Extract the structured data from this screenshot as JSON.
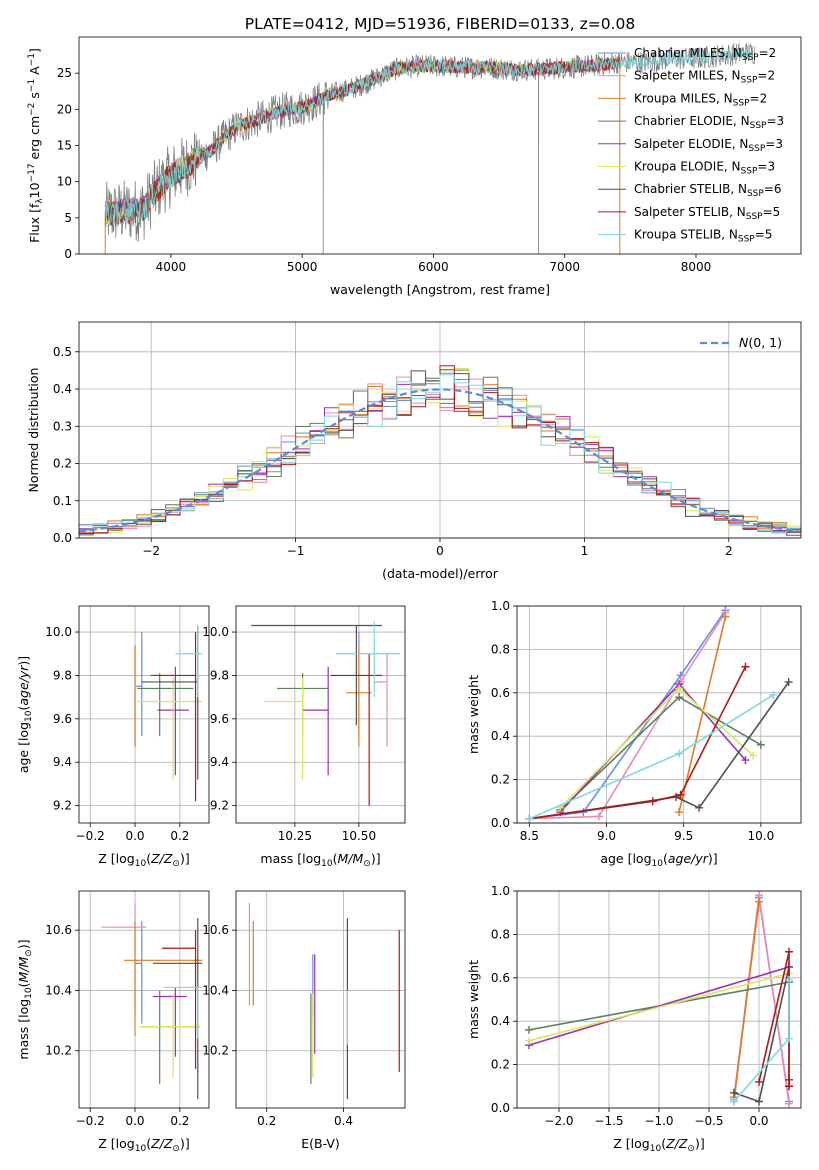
{
  "figure_title": "PLATE=0412, MJD=51936, FIBERID=0133, z=0.08",
  "models": [
    {
      "name": "Chabrier MILES, N_SSP=2",
      "base": "Chabrier MILES, N",
      "sub": "SSP",
      "suffix": "=2",
      "color": "#6a8fe0"
    },
    {
      "name": "Salpeter MILES, N_SSP=2",
      "base": "Salpeter MILES, N",
      "sub": "SSP",
      "suffix": "=2",
      "color": "#e88ab8"
    },
    {
      "name": "Kroupa MILES, N_SSP=2",
      "base": "Kroupa MILES, N",
      "sub": "SSP",
      "suffix": "=2",
      "color": "#e07b22"
    },
    {
      "name": "Chabrier ELODIE, N_SSP=3",
      "base": "Chabrier ELODIE, N",
      "sub": "SSP",
      "suffix": "=3",
      "color": "#5c7f5c"
    },
    {
      "name": "Salpeter ELODIE, N_SSP=3",
      "base": "Salpeter ELODIE, N",
      "sub": "SSP",
      "suffix": "=3",
      "color": "#9b30b0"
    },
    {
      "name": "Kroupa ELODIE, N_SSP=3",
      "base": "Kroupa ELODIE, N",
      "sub": "SSP",
      "suffix": "=3",
      "color": "#d5e860"
    },
    {
      "name": "Chabrier STELIB, N_SSP=6",
      "base": "Chabrier STELIB, N",
      "sub": "SSP",
      "suffix": "=6",
      "color": "#505050"
    },
    {
      "name": "Salpeter STELIB, N_SSP=5",
      "base": "Salpeter STELIB, N",
      "sub": "SSP",
      "suffix": "=5",
      "color": "#b01818"
    },
    {
      "name": "Kroupa STELIB, N_SSP=5",
      "base": "Kroupa STELIB, N",
      "sub": "SSP",
      "suffix": "=5",
      "color": "#7ed8e0"
    }
  ],
  "chart_data": [
    {
      "id": "spectrum",
      "type": "line",
      "title": "PLATE=0412, MJD=51936, FIBERID=0133, z=0.08",
      "xlabel": "wavelength [Angstrom, rest frame]",
      "ylabel": "Flux [f_λ 10^-17 erg cm^-2 s^-1 A^-1]",
      "xlim": [
        3300,
        8800
      ],
      "ylim": [
        0,
        30
      ],
      "xticks": [
        4000,
        5000,
        6000,
        7000,
        8000
      ],
      "yticks": [
        0,
        5,
        10,
        15,
        20,
        25
      ],
      "data_color": "#808080",
      "continuum": [
        [
          3500,
          5.5
        ],
        [
          3600,
          5.8
        ],
        [
          3700,
          6.0
        ],
        [
          3800,
          6.3
        ],
        [
          3850,
          8.0
        ],
        [
          3900,
          9.0
        ],
        [
          3950,
          10.0
        ],
        [
          4000,
          10.8
        ],
        [
          4050,
          11.5
        ],
        [
          4100,
          12.0
        ],
        [
          4200,
          13.2
        ],
        [
          4300,
          14.2
        ],
        [
          4400,
          16.0
        ],
        [
          4500,
          17.5
        ],
        [
          4600,
          18.2
        ],
        [
          4700,
          18.8
        ],
        [
          4800,
          19.5
        ],
        [
          4900,
          20.0
        ],
        [
          5000,
          20.3
        ],
        [
          5100,
          21.0
        ],
        [
          5200,
          22.0
        ],
        [
          5300,
          22.5
        ],
        [
          5400,
          23.0
        ],
        [
          5500,
          23.8
        ],
        [
          5600,
          24.6
        ],
        [
          5700,
          25.5
        ],
        [
          5800,
          25.8
        ],
        [
          5900,
          26.0
        ],
        [
          6000,
          26.0
        ],
        [
          6200,
          25.8
        ],
        [
          6400,
          25.8
        ],
        [
          6600,
          25.5
        ],
        [
          6800,
          25.5
        ],
        [
          7000,
          25.8
        ],
        [
          7200,
          26.0
        ],
        [
          7400,
          26.5
        ],
        [
          7600,
          26.5
        ],
        [
          7800,
          27.0
        ],
        [
          8000,
          27.0
        ],
        [
          8200,
          27.5
        ],
        [
          8400,
          27.8
        ]
      ],
      "data_range": [
        3500,
        8450
      ],
      "model_range": [
        3500,
        7420
      ],
      "data_spikes": [
        [
          5160,
          0
        ],
        [
          6800,
          0
        ]
      ]
    },
    {
      "id": "residuals",
      "type": "histogram",
      "xlabel": "(data-model)/error",
      "ylabel": "Normed distribution",
      "xlim": [
        -2.5,
        2.5
      ],
      "ylim": [
        0,
        0.58
      ],
      "xticks": [
        -2,
        -1,
        0,
        1,
        2
      ],
      "yticks": [
        0,
        0.1,
        0.2,
        0.3,
        0.4,
        0.5
      ],
      "legend": "N(0,1)",
      "legend_color": "#5b8bd6",
      "bin_width": 0.1,
      "bin_start": -2.5
    },
    {
      "id": "age_vs_Z",
      "type": "errorbar",
      "xlabel": "Z [log10(Z/Z☉)]",
      "ylabel": "age [log10(age/yr)]",
      "xlim": [
        -0.25,
        0.33
      ],
      "ylim": [
        9.12,
        10.12
      ],
      "xticks": [
        -0.2,
        0.0,
        0.2
      ],
      "yticks": [
        9.2,
        9.4,
        9.6,
        9.8,
        10.0
      ],
      "points": [
        {
          "x": 0.03,
          "xerr": [
            0.03,
            0.0
          ],
          "y": 9.75,
          "yerr": [
            0.23,
            0.25
          ]
        },
        {
          "x": 0.0,
          "xerr": [
            0.0,
            0.0
          ],
          "y": 9.72,
          "yerr": [
            0.25,
            0.22
          ]
        },
        {
          "x": 0.0,
          "xerr": [
            0.0,
            0.0
          ],
          "y": 9.72,
          "yerr": [
            0.25,
            0.22
          ]
        },
        {
          "x": 0.11,
          "xerr": [
            0.1,
            0.15
          ],
          "y": 9.74,
          "yerr": [
            0.22,
            0.07
          ]
        },
        {
          "x": 0.18,
          "xerr": [
            0.08,
            0.06
          ],
          "y": 9.64,
          "yerr": [
            0.3,
            0.2
          ]
        },
        {
          "x": 0.17,
          "xerr": [
            0.16,
            0.13
          ],
          "y": 9.68,
          "yerr": [
            0.36,
            0.11
          ]
        },
        {
          "x": 0.28,
          "xerr": [
            0.25,
            0.0
          ],
          "y": 9.77,
          "yerr": [
            0.45,
            0.26
          ]
        },
        {
          "x": 0.27,
          "xerr": [
            0.2,
            0.0
          ],
          "y": 9.8,
          "yerr": [
            0.58,
            0.2
          ]
        },
        {
          "x": 0.28,
          "xerr": [
            0.1,
            0.02
          ],
          "y": 9.9,
          "yerr": [
            0.2,
            0.13
          ]
        }
      ]
    },
    {
      "id": "age_vs_mass",
      "type": "errorbar",
      "xlabel": "mass [log10(M/M☉)]",
      "ylabel": "",
      "xlim": [
        10.02,
        10.68
      ],
      "ylim": [
        9.12,
        10.12
      ],
      "xticks": [
        10.25,
        10.5
      ],
      "yticks": [
        9.2,
        9.4,
        9.6,
        9.8,
        10.0
      ],
      "points": [
        {
          "x": 10.5,
          "xerr": [
            0.0,
            0.0
          ],
          "y": 9.75,
          "yerr": [
            0.23,
            0.25
          ]
        },
        {
          "x": 10.61,
          "xerr": [
            0.05,
            0.0
          ],
          "y": 9.77,
          "yerr": [
            0.3,
            0.13
          ]
        },
        {
          "x": 10.5,
          "xerr": [
            0.05,
            0.05
          ],
          "y": 9.72,
          "yerr": [
            0.25,
            0.22
          ]
        },
        {
          "x": 10.28,
          "xerr": [
            0.1,
            0.1
          ],
          "y": 9.74,
          "yerr": [
            0.22,
            0.07
          ]
        },
        {
          "x": 10.38,
          "xerr": [
            0.1,
            0.0
          ],
          "y": 9.64,
          "yerr": [
            0.3,
            0.2
          ]
        },
        {
          "x": 10.28,
          "xerr": [
            0.15,
            0.0
          ],
          "y": 9.68,
          "yerr": [
            0.36,
            0.11
          ]
        },
        {
          "x": 10.49,
          "xerr": [
            0.41,
            0.1
          ],
          "y": 10.03,
          "yerr": [
            0.46,
            0.0
          ]
        },
        {
          "x": 10.54,
          "xerr": [
            0.15,
            0.05
          ],
          "y": 9.8,
          "yerr": [
            0.6,
            0.1
          ]
        },
        {
          "x": 10.56,
          "xerr": [
            0.15,
            0.1
          ],
          "y": 9.9,
          "yerr": [
            0.2,
            0.15
          ]
        }
      ]
    },
    {
      "id": "massweight_vs_age",
      "type": "line",
      "xlabel": "age [log10(age/yr)]",
      "ylabel": "mass weight",
      "xlim": [
        8.42,
        10.26
      ],
      "ylim": [
        0,
        1
      ],
      "xticks": [
        8.5,
        9.0,
        9.5,
        10.0
      ],
      "yticks": [
        0.0,
        0.2,
        0.4,
        0.6,
        0.8,
        1.0
      ],
      "series": [
        {
          "model": 0,
          "x": [
            8.5,
            8.85,
            9.48,
            9.77
          ],
          "y": [
            0.02,
            0.05,
            0.68,
            0.98
          ]
        },
        {
          "model": 1,
          "x": [
            8.5,
            8.95,
            9.48,
            9.77
          ],
          "y": [
            0.02,
            0.03,
            0.65,
            0.97
          ]
        },
        {
          "model": 2,
          "x": [
            9.47,
            9.77
          ],
          "y": [
            0.05,
            0.95
          ]
        },
        {
          "model": 3,
          "x": [
            8.7,
            9.47,
            10.0
          ],
          "y": [
            0.06,
            0.58,
            0.36
          ]
        },
        {
          "model": 4,
          "x": [
            8.7,
            9.47,
            9.9
          ],
          "y": [
            0.05,
            0.64,
            0.29
          ]
        },
        {
          "model": 5,
          "x": [
            8.7,
            9.47,
            9.95
          ],
          "y": [
            0.07,
            0.62,
            0.31
          ]
        },
        {
          "model": 6,
          "x": [
            8.5,
            9.45,
            9.6,
            10.18
          ],
          "y": [
            0.02,
            0.12,
            0.07,
            0.65
          ]
        },
        {
          "model": 7,
          "x": [
            8.5,
            9.3,
            9.48,
            9.9
          ],
          "y": [
            0.02,
            0.1,
            0.13,
            0.72
          ]
        },
        {
          "model": 8,
          "x": [
            8.5,
            9.47,
            10.08
          ],
          "y": [
            0.02,
            0.32,
            0.59
          ]
        }
      ]
    },
    {
      "id": "mass_vs_Z",
      "type": "errorbar",
      "xlabel": "Z [log10(Z/Z☉)]",
      "ylabel": "mass [log10(M/M☉)]",
      "xlim": [
        -0.25,
        0.33
      ],
      "ylim": [
        10.01,
        10.73
      ],
      "xticks": [
        -0.2,
        0.0,
        0.2
      ],
      "yticks": [
        10.2,
        10.4,
        10.6
      ],
      "points": [
        {
          "x": 0.03,
          "xerr": [
            0.03,
            0.0
          ],
          "y": 10.49,
          "yerr": [
            0.2,
            0.14
          ]
        },
        {
          "x": 0.0,
          "xerr": [
            0.15,
            0.05
          ],
          "y": 10.61,
          "yerr": [
            0.29,
            0.08
          ]
        },
        {
          "x": 0.0,
          "xerr": [
            0.05,
            0.3
          ],
          "y": 10.5,
          "yerr": [
            0.25,
            0.13
          ]
        },
        {
          "x": 0.11,
          "xerr": [
            0.08,
            0.18
          ],
          "y": 10.28,
          "yerr": [
            0.19,
            0.12
          ]
        },
        {
          "x": 0.18,
          "xerr": [
            0.1,
            0.05
          ],
          "y": 10.38,
          "yerr": [
            0.2,
            0.03
          ]
        },
        {
          "x": 0.17,
          "xerr": [
            0.15,
            0.12
          ],
          "y": 10.28,
          "yerr": [
            0.17,
            0.11
          ]
        },
        {
          "x": 0.28,
          "xerr": [
            0.2,
            0.02
          ],
          "y": 10.49,
          "yerr": [
            0.45,
            0.15
          ]
        },
        {
          "x": 0.27,
          "xerr": [
            0.15,
            0.0
          ],
          "y": 10.54,
          "yerr": [
            0.4,
            0.06
          ]
        },
        {
          "x": 0.28,
          "xerr": [
            0.15,
            0.02
          ],
          "y": 10.41,
          "yerr": [
            0.17,
            0.0
          ]
        }
      ]
    },
    {
      "id": "mass_vs_EBV",
      "type": "errorbar",
      "xlabel": "E(B-V)",
      "ylabel": "",
      "xlim": [
        0.12,
        0.56
      ],
      "ylim": [
        10.01,
        10.73
      ],
      "xticks": [
        0.2,
        0.4
      ],
      "yticks": [
        10.2,
        10.4,
        10.6
      ],
      "points": [
        {
          "x": 0.32,
          "xerr": [
            0.0,
            0.0
          ],
          "y": 10.49,
          "yerr": [
            0.18,
            0.03
          ]
        },
        {
          "x": 0.155,
          "xerr": [
            0.0,
            0.0
          ],
          "y": 10.61,
          "yerr": [
            0.26,
            0.08
          ]
        },
        {
          "x": 0.165,
          "xerr": [
            0.0,
            0.0
          ],
          "y": 10.5,
          "yerr": [
            0.15,
            0.13
          ]
        },
        {
          "x": 0.315,
          "xerr": [
            0.0,
            0.0
          ],
          "y": 10.28,
          "yerr": [
            0.19,
            0.11
          ]
        },
        {
          "x": 0.325,
          "xerr": [
            0.0,
            0.0
          ],
          "y": 10.38,
          "yerr": [
            0.19,
            0.14
          ]
        },
        {
          "x": 0.32,
          "xerr": [
            0.0,
            0.0
          ],
          "y": 10.28,
          "yerr": [
            0.17,
            0.11
          ]
        },
        {
          "x": 0.41,
          "xerr": [
            0.0,
            0.0
          ],
          "y": 10.49,
          "yerr": [
            0.45,
            0.15
          ]
        },
        {
          "x": 0.545,
          "xerr": [
            0.0,
            0.0
          ],
          "y": 10.4,
          "yerr": [
            0.27,
            0.2
          ]
        },
        {
          "x": 0.41,
          "xerr": [
            0.0,
            0.0
          ],
          "y": 10.4,
          "yerr": [
            0.18,
            0.0
          ]
        }
      ]
    },
    {
      "id": "massweight_vs_Z",
      "type": "line",
      "xlabel": "Z [log10(Z/Z☉)]",
      "ylabel": "mass weight",
      "xlim": [
        -2.42,
        0.42
      ],
      "ylim": [
        0,
        1
      ],
      "xticks": [
        -2.0,
        -1.5,
        -1.0,
        -0.5,
        0.0
      ],
      "yticks": [
        0.0,
        0.2,
        0.4,
        0.6,
        0.8,
        1.0
      ],
      "series": [
        {
          "model": 0,
          "x": [
            -0.25,
            0.0,
            0.3
          ],
          "y": [
            0.03,
            0.97,
            0.03
          ]
        },
        {
          "model": 1,
          "x": [
            -0.25,
            0.0,
            0.3
          ],
          "y": [
            0.04,
            0.98,
            0.02
          ]
        },
        {
          "model": 2,
          "x": [
            -0.25,
            0.0
          ],
          "y": [
            0.05,
            0.95
          ]
        },
        {
          "model": 3,
          "x": [
            -2.3,
            0.3
          ],
          "y": [
            0.36,
            0.58
          ]
        },
        {
          "model": 4,
          "x": [
            -2.3,
            0.3
          ],
          "y": [
            0.29,
            0.65
          ]
        },
        {
          "model": 5,
          "x": [
            -2.3,
            0.3
          ],
          "y": [
            0.31,
            0.62
          ]
        },
        {
          "model": 6,
          "x": [
            -0.25,
            0.0,
            0.3,
            0.3
          ],
          "y": [
            0.07,
            0.03,
            0.65,
            0.1
          ]
        },
        {
          "model": 7,
          "x": [
            0.0,
            0.3,
            0.3,
            0.3
          ],
          "y": [
            0.12,
            0.72,
            0.1,
            0.13
          ]
        },
        {
          "model": 8,
          "x": [
            -0.25,
            0.3,
            0.3
          ],
          "y": [
            0.03,
            0.32,
            0.59
          ]
        }
      ]
    }
  ]
}
